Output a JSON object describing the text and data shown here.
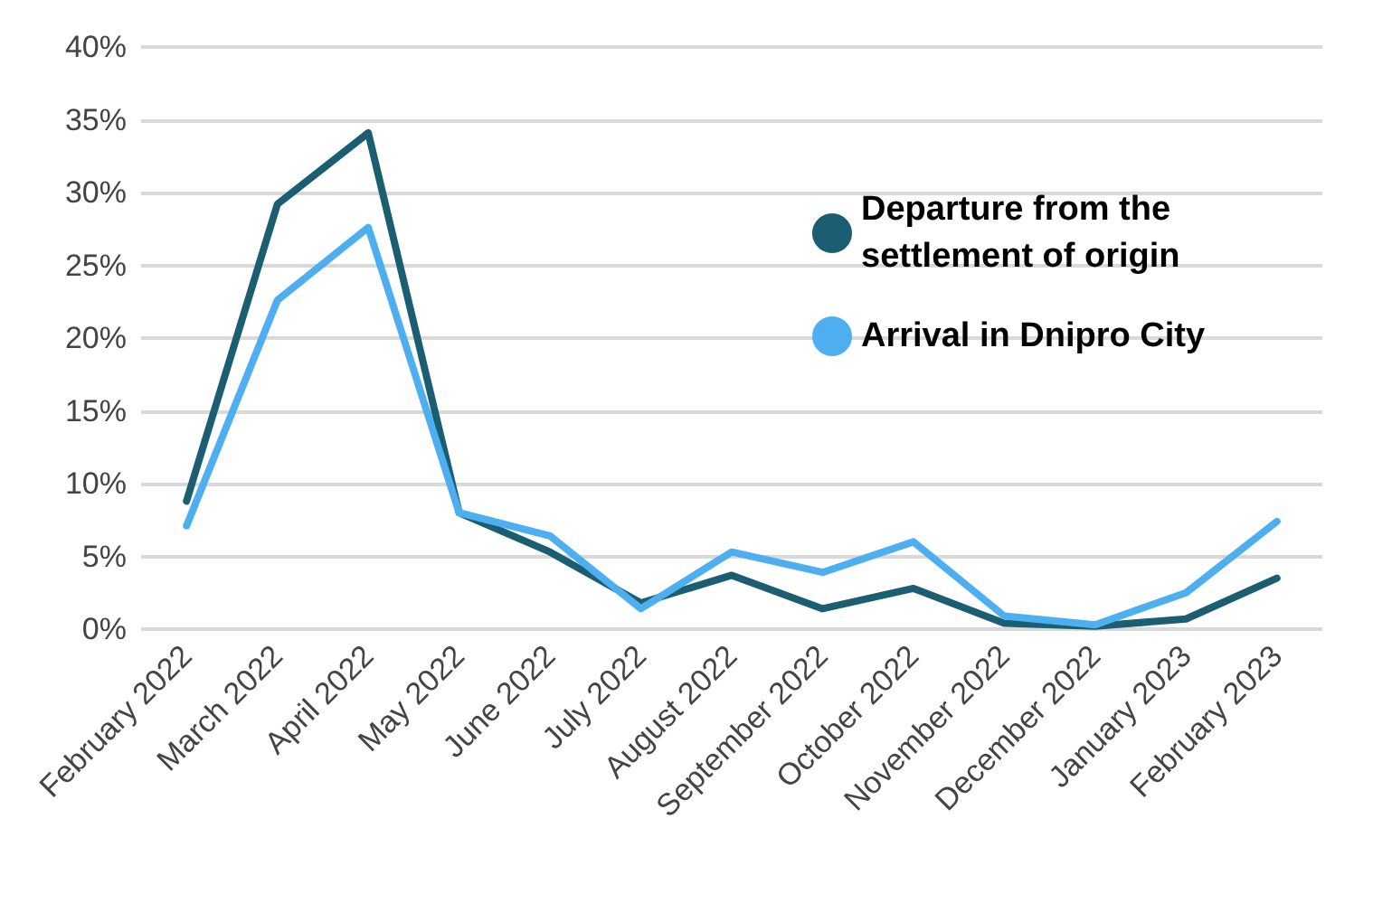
{
  "chart_data": {
    "type": "line",
    "categories": [
      "February 2022",
      "March 2022",
      "April 2022",
      "May 2022",
      "June 2022",
      "July 2022",
      "August 2022",
      "September 2022",
      "October 2022",
      "November 2022",
      "December 2022",
      "January 2023",
      "February 2023"
    ],
    "series": [
      {
        "name": "Departure from the settlement of origin",
        "color": "#1b5e72",
        "values": [
          8.8,
          29.2,
          34.1,
          8.0,
          5.3,
          1.8,
          3.7,
          1.4,
          2.8,
          0.4,
          0.2,
          0.7,
          3.5
        ]
      },
      {
        "name": "Arrival in Dnipro City",
        "color": "#4daef0",
        "values": [
          7.1,
          22.6,
          27.6,
          8.0,
          6.4,
          1.4,
          5.3,
          3.9,
          6.0,
          0.9,
          0.3,
          2.5,
          7.4
        ]
      }
    ],
    "ylim": [
      0,
      40
    ],
    "yticks": [
      {
        "value": 0,
        "label": "0%"
      },
      {
        "value": 5,
        "label": "5%"
      },
      {
        "value": 10,
        "label": "10%"
      },
      {
        "value": 15,
        "label": "15%"
      },
      {
        "value": 20,
        "label": "20%"
      },
      {
        "value": 25,
        "label": "25%"
      },
      {
        "value": 30,
        "label": "30%"
      },
      {
        "value": 35,
        "label": "35%"
      },
      {
        "value": 40,
        "label": "40%"
      }
    ],
    "grid": "y",
    "legend": "top right",
    "marker": "none",
    "line_style": "solid"
  }
}
